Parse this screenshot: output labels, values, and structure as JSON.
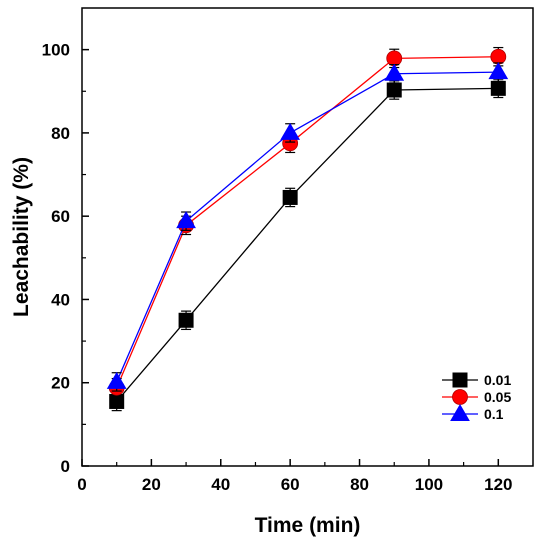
{
  "chart_data": {
    "type": "line",
    "xlabel": "Time (min)",
    "ylabel": "Leachability (%)",
    "xlim": [
      0,
      130
    ],
    "ylim": [
      0,
      110
    ],
    "x_ticks": [
      0,
      20,
      40,
      60,
      80,
      100,
      120
    ],
    "y_ticks": [
      0,
      20,
      40,
      60,
      80,
      100
    ],
    "x": [
      10,
      30,
      60,
      90,
      120
    ],
    "grid": false,
    "legend_position": "bottom-right",
    "error_bars": true,
    "series": [
      {
        "name": "0.01",
        "color": "#000000",
        "marker": "square",
        "values": [
          15.5,
          35,
          64.5,
          90.3,
          90.7
        ],
        "errors": [
          2.2,
          2.2,
          2.2,
          2.2,
          2.2
        ]
      },
      {
        "name": "0.05",
        "color": "#ff0000",
        "marker": "circle",
        "values": [
          18.8,
          57.8,
          77.5,
          97.9,
          98.3
        ],
        "errors": [
          2.2,
          2.2,
          2.2,
          2.2,
          2.2
        ]
      },
      {
        "name": "0.1",
        "color": "#0000ff",
        "marker": "triangle",
        "values": [
          20.2,
          58.8,
          80,
          94.2,
          94.6
        ],
        "errors": [
          2.2,
          2.2,
          2.2,
          2.2,
          2.2
        ]
      }
    ]
  }
}
